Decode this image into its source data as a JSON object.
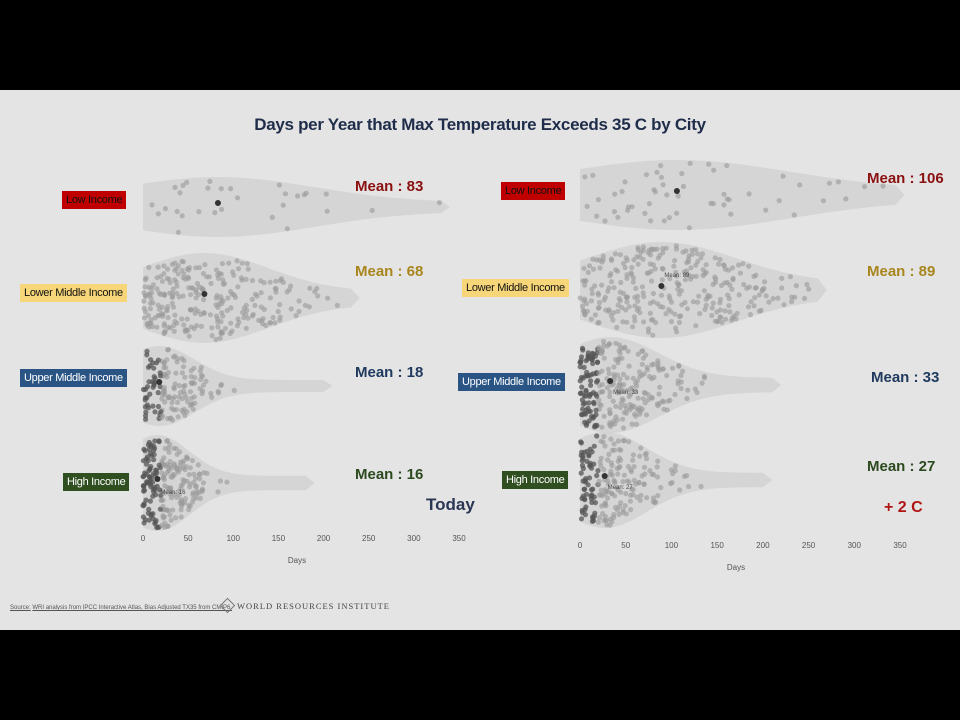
{
  "title": "Days per Year that Max Temperature Exceeds 35 C by City",
  "source": {
    "prefix": "Source:",
    "text": "WRI analysis from IPCC Interactive Atlas, Bias Adjusted TX35 from CMIP6."
  },
  "logo_text": "WORLD RESOURCES INSTITUTE",
  "tags": {
    "today": "Today",
    "warming": "+ 2 C"
  },
  "chart_data": [
    {
      "type": "scatter",
      "scenario": "Today",
      "xlabel": "Days",
      "xlim": [
        0,
        350
      ],
      "xticks": [
        "0",
        "50",
        "100",
        "150",
        "200",
        "250",
        "300",
        "350"
      ],
      "groups": [
        {
          "label": "Low Income",
          "mean_label": "Mean : 83",
          "mean": 83,
          "max": 330,
          "spread": 150,
          "count": 30,
          "color": "#c00000"
        },
        {
          "label": "Lower Middle  Income",
          "mean_label": "Mean : 68",
          "mean": 68,
          "max": 230,
          "spread": 100,
          "count": 260,
          "color": "#f7d67a"
        },
        {
          "label": "Upper Middle  Income",
          "mean_label": "Mean : 18",
          "mean": 18,
          "max": 200,
          "spread": 55,
          "count": 140,
          "color": "#2a5484"
        },
        {
          "label": "High Income",
          "mean_label": "Mean : 16",
          "mean": 16,
          "inner_label": "Mean: 16",
          "max": 180,
          "spread": 50,
          "count": 220,
          "color": "#2f4f21"
        }
      ]
    },
    {
      "type": "scatter",
      "scenario": "+ 2 C",
      "xlabel": "Days",
      "xlim": [
        0,
        350
      ],
      "xticks": [
        "0",
        "50",
        "100",
        "150",
        "200",
        "250",
        "300",
        "350"
      ],
      "groups": [
        {
          "label": "Low Income",
          "mean_label": "Mean : 106",
          "mean": 106,
          "max": 345,
          "spread": 175,
          "count": 55,
          "color": "#c00000"
        },
        {
          "label": "Lower Middle  Income",
          "mean_label": "Mean : 89",
          "mean": 89,
          "inner_label": "Mean: 89",
          "max": 260,
          "spread": 115,
          "count": 300,
          "color": "#f7d67a"
        },
        {
          "label": "Upper Middle  Income",
          "mean_label": "Mean : 33",
          "mean": 33,
          "inner_label": "Mean: 33",
          "max": 210,
          "spread": 75,
          "count": 260,
          "color": "#2a5484"
        },
        {
          "label": "High Income",
          "mean_label": "Mean : 27",
          "mean": 27,
          "inner_label": "Mean: 27",
          "max": 200,
          "spread": 65,
          "count": 200,
          "color": "#2f4f21"
        }
      ]
    }
  ]
}
